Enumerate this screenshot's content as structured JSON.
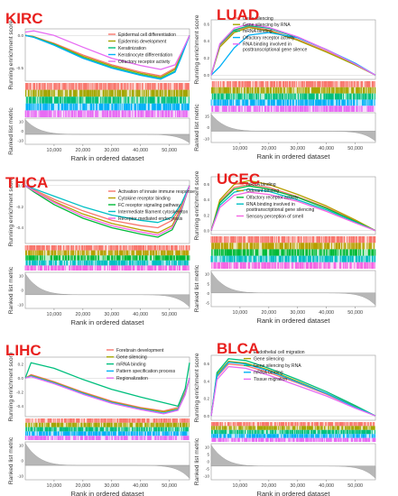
{
  "figure": {
    "xlabel": "Rank in ordered dataset",
    "ylabel_top": "Running enrichment score",
    "ylabel_bottom": "Ranked list metric",
    "label_color": "#e8201e"
  },
  "chart_data": [
    {
      "type": "line",
      "cancer": "KIRC",
      "x_ticks": [
        "10,000",
        "20,000",
        "30,000",
        "40,000",
        "50,000"
      ],
      "y_ticks": [
        "0.0",
        "-0.5"
      ],
      "metric_ticks": [
        "10",
        "0",
        "-10"
      ],
      "xlim": [
        0,
        57000
      ],
      "ylim": [
        -0.7,
        0.1
      ],
      "series": [
        {
          "name": "Epidermal cell differentiation",
          "color": "#f8766d",
          "x": [
            0,
            3000,
            10000,
            20000,
            30000,
            40000,
            47000,
            52000,
            54000,
            57000
          ],
          "y": [
            0.0,
            -0.02,
            -0.12,
            -0.3,
            -0.45,
            -0.56,
            -0.62,
            -0.5,
            -0.3,
            0.0
          ]
        },
        {
          "name": "Epidermis development",
          "color": "#a3a500",
          "x": [
            0,
            3000,
            10000,
            20000,
            30000,
            40000,
            47000,
            52000,
            54000,
            57000
          ],
          "y": [
            0.0,
            -0.02,
            -0.13,
            -0.32,
            -0.47,
            -0.58,
            -0.64,
            -0.52,
            -0.32,
            0.0
          ]
        },
        {
          "name": "Keratinization",
          "color": "#00bf7d",
          "x": [
            0,
            3000,
            10000,
            20000,
            30000,
            40000,
            47000,
            52000,
            54000,
            57000
          ],
          "y": [
            0.0,
            -0.03,
            -0.14,
            -0.34,
            -0.49,
            -0.6,
            -0.66,
            -0.55,
            -0.34,
            0.0
          ]
        },
        {
          "name": "Keratinocyte differentiation",
          "color": "#00b0f6",
          "x": [
            0,
            3000,
            10000,
            20000,
            30000,
            40000,
            47000,
            52000,
            54000,
            57000
          ],
          "y": [
            0.0,
            -0.03,
            -0.15,
            -0.35,
            -0.5,
            -0.61,
            -0.67,
            -0.56,
            -0.35,
            0.0
          ]
        },
        {
          "name": "Olfactory receptor activity",
          "color": "#e76bf3",
          "x": [
            0,
            3000,
            10000,
            20000,
            30000,
            40000,
            47000,
            52000,
            54000,
            57000
          ],
          "y": [
            0.05,
            0.07,
            0.0,
            -0.18,
            -0.35,
            -0.46,
            -0.52,
            -0.45,
            -0.28,
            0.0
          ]
        }
      ]
    },
    {
      "type": "line",
      "cancer": "LUAD",
      "x_ticks": [
        "10,000",
        "20,000",
        "30,000",
        "40,000",
        "50,000"
      ],
      "y_ticks": [
        "0.6",
        "0.4",
        "0.2",
        "0.0"
      ],
      "metric_ticks": [
        "15",
        "0",
        "-10"
      ],
      "xlim": [
        0,
        57000
      ],
      "ylim": [
        -0.05,
        0.65
      ],
      "series": [
        {
          "name": "Gene silencing",
          "color": "#f8766d",
          "x": [
            0,
            3000,
            8000,
            13000,
            20000,
            30000,
            40000,
            50000,
            57000
          ],
          "y": [
            0.0,
            0.35,
            0.52,
            0.57,
            0.53,
            0.42,
            0.28,
            0.12,
            0.0
          ]
        },
        {
          "name": "Gene silencing by RNA",
          "color": "#a3a500",
          "x": [
            0,
            3000,
            8000,
            13000,
            20000,
            30000,
            40000,
            50000,
            57000
          ],
          "y": [
            0.0,
            0.33,
            0.5,
            0.56,
            0.52,
            0.41,
            0.27,
            0.12,
            0.0
          ]
        },
        {
          "name": "mRNA binding",
          "color": "#00bf7d",
          "x": [
            0,
            3000,
            8000,
            13000,
            20000,
            30000,
            40000,
            50000,
            57000
          ],
          "y": [
            0.0,
            0.36,
            0.53,
            0.58,
            0.55,
            0.44,
            0.3,
            0.13,
            0.0
          ]
        },
        {
          "name": "Olfactory receptor activity",
          "color": "#00b0f6",
          "x": [
            0,
            1500,
            3000,
            8000,
            13000,
            20000,
            30000,
            40000,
            50000,
            57000
          ],
          "y": [
            0.0,
            0.05,
            0.1,
            0.32,
            0.47,
            0.5,
            0.44,
            0.3,
            0.14,
            0.0
          ]
        },
        {
          "name": "RNA binding involved in posttranscriptional gene silence",
          "color": "#e76bf3",
          "x": [
            0,
            3000,
            8000,
            13000,
            20000,
            30000,
            40000,
            50000,
            57000
          ],
          "y": [
            0.0,
            0.37,
            0.55,
            0.6,
            0.56,
            0.45,
            0.3,
            0.13,
            0.0
          ]
        }
      ]
    },
    {
      "type": "line",
      "cancer": "THCA",
      "x_ticks": [
        "10,000",
        "20,000",
        "30,000",
        "40,000",
        "50,000"
      ],
      "y_ticks": [
        "0.0",
        "-0.2",
        "-0.4"
      ],
      "metric_ticks": [
        "10",
        "0",
        "-10"
      ],
      "xlim": [
        0,
        57000
      ],
      "ylim": [
        -0.55,
        0.05
      ],
      "series": [
        {
          "name": "Activation of innate immune response",
          "color": "#f8766d",
          "x": [
            0,
            3000,
            10000,
            20000,
            30000,
            40000,
            46000,
            51000,
            54000,
            57000
          ],
          "y": [
            0.0,
            -0.04,
            -0.13,
            -0.24,
            -0.33,
            -0.38,
            -0.4,
            -0.33,
            -0.2,
            0.0
          ]
        },
        {
          "name": "Cytokine receptor binding",
          "color": "#b79f00",
          "x": [
            0,
            3000,
            10000,
            20000,
            30000,
            40000,
            46000,
            51000,
            54000,
            57000
          ],
          "y": [
            0.0,
            -0.05,
            -0.15,
            -0.27,
            -0.36,
            -0.42,
            -0.45,
            -0.38,
            -0.22,
            0.0
          ]
        },
        {
          "name": "FC receptor signaling pathway",
          "color": "#00ba38",
          "x": [
            0,
            3000,
            10000,
            20000,
            30000,
            40000,
            46000,
            51000,
            54000,
            57000
          ],
          "y": [
            0.0,
            -0.06,
            -0.18,
            -0.31,
            -0.4,
            -0.46,
            -0.49,
            -0.42,
            -0.25,
            0.0
          ]
        },
        {
          "name": "Intermediate filament cytoskeleton",
          "color": "#00bfc4",
          "x": [
            0,
            3000,
            10000,
            20000,
            30000,
            40000,
            46000,
            51000,
            54000,
            57000
          ],
          "y": [
            0.0,
            -0.03,
            -0.1,
            -0.2,
            -0.28,
            -0.33,
            -0.35,
            -0.3,
            -0.18,
            0.0
          ]
        },
        {
          "name": "Receptor mediated endocytosis",
          "color": "#f564e3",
          "x": [
            0,
            3000,
            10000,
            20000,
            30000,
            40000,
            46000,
            51000,
            54000,
            57000
          ],
          "y": [
            0.0,
            -0.05,
            -0.16,
            -0.29,
            -0.38,
            -0.44,
            -0.47,
            -0.4,
            -0.24,
            0.0
          ]
        }
      ]
    },
    {
      "type": "line",
      "cancer": "UCEC",
      "x_ticks": [
        "10,000",
        "20,000",
        "30,000",
        "40,000",
        "50,000"
      ],
      "y_ticks": [
        "0.6",
        "0.4",
        "0.2",
        "0.0"
      ],
      "metric_ticks": [
        "10",
        "5",
        "0",
        "-5"
      ],
      "xlim": [
        0,
        57000
      ],
      "ylim": [
        -0.05,
        0.7
      ],
      "series": [
        {
          "name": "mRNA binding",
          "color": "#f8766d",
          "x": [
            0,
            3000,
            8000,
            13000,
            20000,
            30000,
            40000,
            50000,
            57000
          ],
          "y": [
            0.0,
            0.38,
            0.56,
            0.6,
            0.56,
            0.44,
            0.3,
            0.13,
            0.0
          ]
        },
        {
          "name": "Odorant binding",
          "color": "#b79f00",
          "x": [
            0,
            3000,
            8000,
            13000,
            20000,
            30000,
            40000,
            50000,
            57000
          ],
          "y": [
            0.0,
            0.4,
            0.6,
            0.65,
            0.6,
            0.47,
            0.32,
            0.14,
            0.0
          ]
        },
        {
          "name": "Olfactory receptor activity",
          "color": "#00ba38",
          "x": [
            0,
            3000,
            8000,
            13000,
            20000,
            30000,
            40000,
            50000,
            57000
          ],
          "y": [
            0.0,
            0.36,
            0.54,
            0.58,
            0.54,
            0.43,
            0.29,
            0.12,
            0.0
          ]
        },
        {
          "name": "RNA binding involved in posttranscriptional gene silencing",
          "color": "#00bfc4",
          "x": [
            0,
            3000,
            8000,
            13000,
            20000,
            30000,
            40000,
            50000,
            57000
          ],
          "y": [
            0.0,
            0.33,
            0.5,
            0.54,
            0.51,
            0.4,
            0.27,
            0.11,
            0.0
          ]
        },
        {
          "name": "Sensory perception of smell",
          "color": "#f564e3",
          "x": [
            0,
            3000,
            8000,
            13000,
            20000,
            30000,
            40000,
            50000,
            57000
          ],
          "y": [
            0.0,
            0.3,
            0.46,
            0.5,
            0.47,
            0.38,
            0.25,
            0.1,
            0.0
          ]
        }
      ]
    },
    {
      "type": "line",
      "cancer": "LIHC",
      "x_ticks": [
        "10,000",
        "20,000",
        "30,000",
        "40,000",
        "50,000"
      ],
      "y_ticks": [
        "0.2",
        "0.0",
        "-0.2",
        "-0.4"
      ],
      "metric_ticks": [
        "10",
        "0",
        "-10"
      ],
      "xlim": [
        0,
        57000
      ],
      "ylim": [
        -0.55,
        0.3
      ],
      "series": [
        {
          "name": "Forebrain development",
          "color": "#f8766d",
          "x": [
            0,
            2000,
            10000,
            20000,
            30000,
            40000,
            48000,
            53000,
            55500,
            57000
          ],
          "y": [
            0.0,
            0.05,
            -0.05,
            -0.2,
            -0.33,
            -0.42,
            -0.47,
            -0.42,
            -0.2,
            0.0
          ]
        },
        {
          "name": "Gene silencing",
          "color": "#a3a500",
          "x": [
            0,
            2000,
            10000,
            20000,
            30000,
            40000,
            48000,
            53000,
            55500,
            57000
          ],
          "y": [
            0.0,
            0.04,
            -0.06,
            -0.21,
            -0.34,
            -0.43,
            -0.48,
            -0.44,
            -0.22,
            0.0
          ]
        },
        {
          "name": "mRNA binding",
          "color": "#00bf7d",
          "x": [
            0,
            2000,
            10000,
            20000,
            30000,
            40000,
            48000,
            53000,
            55500,
            57000
          ],
          "y": [
            0.0,
            0.22,
            0.14,
            -0.02,
            -0.16,
            -0.27,
            -0.35,
            -0.4,
            -0.15,
            0.22
          ]
        },
        {
          "name": "Pattern specification process",
          "color": "#00b0f6",
          "x": [
            0,
            2000,
            10000,
            20000,
            30000,
            40000,
            48000,
            53000,
            55500,
            57000
          ],
          "y": [
            0.0,
            0.03,
            -0.07,
            -0.22,
            -0.35,
            -0.44,
            -0.5,
            -0.45,
            -0.23,
            0.0
          ]
        },
        {
          "name": "Regionalization",
          "color": "#e76bf3",
          "x": [
            0,
            2000,
            10000,
            20000,
            30000,
            40000,
            48000,
            53000,
            55500,
            57000
          ],
          "y": [
            0.0,
            0.02,
            -0.08,
            -0.23,
            -0.36,
            -0.45,
            -0.51,
            -0.46,
            -0.24,
            0.0
          ]
        }
      ]
    },
    {
      "type": "line",
      "cancer": "BLCA",
      "x_ticks": [
        "10,000",
        "20,000",
        "30,000",
        "40,000",
        "50,000"
      ],
      "y_ticks": [
        "0.6",
        "0.4",
        "0.2",
        "0.0"
      ],
      "metric_ticks": [
        "10",
        "5",
        "0",
        "-5",
        "-10"
      ],
      "xlim": [
        0,
        57000
      ],
      "ylim": [
        -0.05,
        0.7
      ],
      "series": [
        {
          "name": "Endothelial cell migration",
          "color": "#f8766d",
          "x": [
            0,
            2000,
            6000,
            12000,
            20000,
            30000,
            40000,
            50000,
            57000
          ],
          "y": [
            0.0,
            0.45,
            0.6,
            0.58,
            0.5,
            0.38,
            0.25,
            0.1,
            0.0
          ]
        },
        {
          "name": "Gene silencing",
          "color": "#a3a500",
          "x": [
            0,
            2000,
            6000,
            12000,
            20000,
            30000,
            40000,
            50000,
            57000
          ],
          "y": [
            0.0,
            0.48,
            0.63,
            0.61,
            0.53,
            0.4,
            0.26,
            0.11,
            0.0
          ]
        },
        {
          "name": "Gene silencing by RNA",
          "color": "#00bf7d",
          "x": [
            0,
            2000,
            6000,
            12000,
            20000,
            30000,
            40000,
            50000,
            57000
          ],
          "y": [
            0.0,
            0.5,
            0.66,
            0.64,
            0.55,
            0.42,
            0.28,
            0.12,
            0.0
          ]
        },
        {
          "name": "mRNA binding",
          "color": "#00b0f6",
          "x": [
            0,
            2000,
            6000,
            12000,
            20000,
            30000,
            40000,
            50000,
            57000
          ],
          "y": [
            0.0,
            0.46,
            0.62,
            0.6,
            0.52,
            0.39,
            0.26,
            0.1,
            0.0
          ]
        },
        {
          "name": "Tissue migration",
          "color": "#e76bf3",
          "x": [
            0,
            2000,
            6000,
            12000,
            20000,
            30000,
            40000,
            50000,
            57000
          ],
          "y": [
            0.0,
            0.42,
            0.57,
            0.55,
            0.47,
            0.35,
            0.23,
            0.09,
            0.0
          ]
        }
      ]
    }
  ]
}
